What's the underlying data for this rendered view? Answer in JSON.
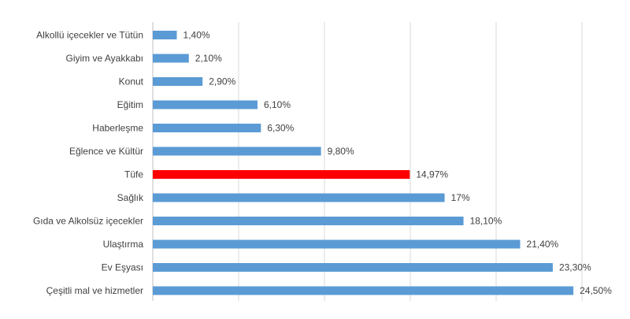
{
  "chart_data": {
    "type": "bar",
    "orientation": "horizontal",
    "categories": [
      "Alkollü içecekler ve Tütün",
      "Giyim ve Ayakkabı",
      "Konut",
      "Eğitim",
      "Haberleşme",
      "Eğlence ve Kültür",
      "Tüfe",
      "Sağlık",
      "Gıda ve Alkolsüz içecekler",
      "Ulaştırma",
      "Ev Eşyası",
      "Çeşitli mal ve hizmetler"
    ],
    "values": [
      1.4,
      2.1,
      2.9,
      6.1,
      6.3,
      9.8,
      14.97,
      17,
      18.1,
      21.4,
      23.3,
      24.5
    ],
    "data_labels": [
      "1,40%",
      "2,10%",
      "2,90%",
      "6,10%",
      "6,30%",
      "9,80%",
      "14,97%",
      "17%",
      "18,10%",
      "21,40%",
      "23,30%",
      "24,50%"
    ],
    "xlim": [
      0,
      25
    ],
    "grid_step": 5,
    "grid": true,
    "colors": {
      "bar": "#5b9bd5",
      "highlight": "#ff0000",
      "grid": "#d9d9d9",
      "text": "#404040"
    },
    "highlight_category": "Tüfe",
    "title": "",
    "xlabel": "",
    "ylabel": ""
  }
}
